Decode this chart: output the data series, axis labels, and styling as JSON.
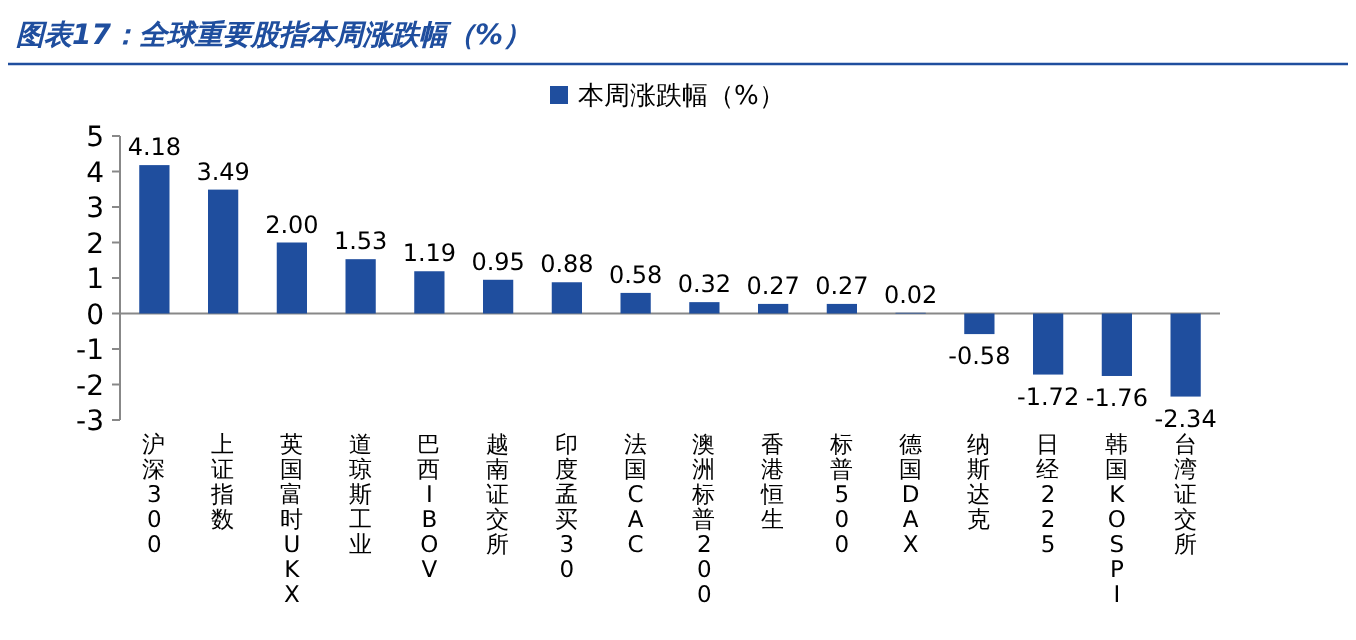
{
  "chart_data": {
    "type": "bar",
    "title": "图表17：全球重要股指本周涨跌幅（%）",
    "categories": [
      "沪深300",
      "上证指数",
      "英国富时UKX",
      "道琼斯工业",
      "巴西IBOV",
      "越南证交所",
      "印度孟买30",
      "法国CAC",
      "澳洲标普200",
      "香港恒生",
      "标普500",
      "德国DAX",
      "纳斯达克",
      "日经225",
      "韩国KOSPI",
      "台湾证交所"
    ],
    "series": [
      {
        "name": "本周涨跌幅（%）",
        "color": "#1f4e9e",
        "values": [
          4.18,
          3.49,
          2.0,
          1.53,
          1.19,
          0.95,
          0.88,
          0.58,
          0.32,
          0.27,
          0.27,
          0.02,
          -0.58,
          -1.72,
          -1.76,
          -2.34
        ],
        "value_labels": [
          "4.18",
          "3.49",
          "2.00",
          "1.53",
          "1.19",
          "0.95",
          "0.88",
          "0.58",
          "0.32",
          "0.27",
          "0.27",
          "0.02",
          "-0.58",
          "-1.72",
          "-1.76",
          "-2.34"
        ]
      }
    ],
    "ylim": [
      -3,
      5
    ],
    "yticks": [
      -3,
      -2,
      -1,
      0,
      1,
      2,
      3,
      4,
      5
    ],
    "legend": "top"
  }
}
